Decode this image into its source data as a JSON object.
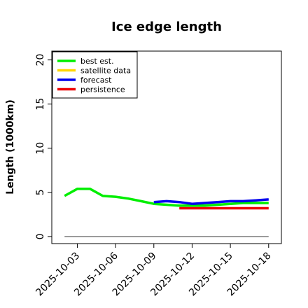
{
  "chart_data": {
    "type": "line",
    "title": "Ice edge length",
    "xlabel": "",
    "ylabel": "Length (1000km)",
    "ylim": [
      -0.8,
      21
    ],
    "yticks": [
      0,
      5,
      10,
      15,
      20
    ],
    "xlim": [
      "2025-10-01",
      "2025-10-19"
    ],
    "xticks": [
      {
        "label": "2025-10-03",
        "color": "#000000"
      },
      {
        "label": "2025-10-06",
        "color": "#000000"
      },
      {
        "label": "2025-10-09",
        "color": "#228b22"
      },
      {
        "label": "2025-10-12",
        "color": "#000000"
      },
      {
        "label": "2025-10-15",
        "color": "#000000"
      },
      {
        "label": "2025-10-18",
        "color": "#000000"
      }
    ],
    "grid": false,
    "legend_position": "top-left",
    "reference_line": {
      "y": 0,
      "x_start": "2025-10-02",
      "x_end": "2025-10-18",
      "color": "#808080"
    },
    "series": [
      {
        "name": "best est.",
        "color": "#00ee00",
        "x": [
          "2025-10-02",
          "2025-10-03",
          "2025-10-04",
          "2025-10-05",
          "2025-10-06",
          "2025-10-07",
          "2025-10-08",
          "2025-10-09",
          "2025-10-10",
          "2025-10-11",
          "2025-10-12",
          "2025-10-13",
          "2025-10-14",
          "2025-10-15",
          "2025-10-16",
          "2025-10-17",
          "2025-10-18"
        ],
        "y": [
          4.6,
          5.4,
          5.4,
          4.6,
          4.5,
          4.3,
          4.0,
          3.7,
          3.6,
          3.5,
          3.5,
          3.5,
          3.6,
          3.7,
          3.8,
          3.8,
          3.8
        ]
      },
      {
        "name": "satellite data",
        "color": "#ffd700",
        "x": [],
        "y": []
      },
      {
        "name": "forecast",
        "color": "#0000ee",
        "x": [
          "2025-10-09",
          "2025-10-10",
          "2025-10-11",
          "2025-10-12",
          "2025-10-13",
          "2025-10-14",
          "2025-10-15",
          "2025-10-16",
          "2025-10-17",
          "2025-10-18"
        ],
        "y": [
          3.9,
          4.0,
          3.9,
          3.7,
          3.8,
          3.9,
          4.0,
          4.0,
          4.1,
          4.2
        ]
      },
      {
        "name": "persistence",
        "color": "#ee0000",
        "x": [
          "2025-10-11",
          "2025-10-12",
          "2025-10-13",
          "2025-10-14",
          "2025-10-15",
          "2025-10-16",
          "2025-10-17",
          "2025-10-18"
        ],
        "y": [
          3.2,
          3.2,
          3.2,
          3.2,
          3.2,
          3.2,
          3.2,
          3.2
        ]
      }
    ]
  }
}
